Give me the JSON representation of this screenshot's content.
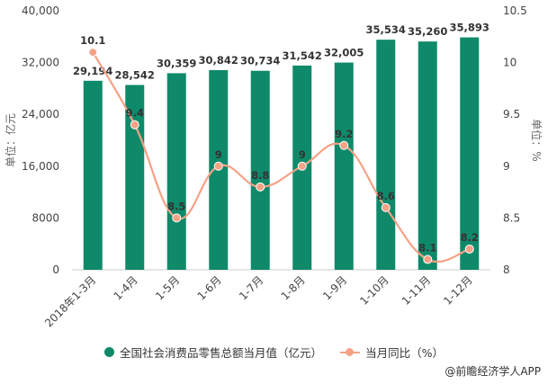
{
  "chart_data": {
    "type": "bar",
    "categories": [
      "2018年1-3月",
      "1-4月",
      "1-5月",
      "1-6月",
      "1-7月",
      "1-8月",
      "1-9月",
      "1-10月",
      "1-11月",
      "1-12月"
    ],
    "series": [
      {
        "name": "全国社会消费品零售总额当月值（亿元）",
        "type": "bar",
        "axis": "left",
        "values": [
          29194,
          28542,
          30359,
          30842,
          30734,
          31542,
          32005,
          35534,
          35260,
          35893
        ],
        "labels": [
          "29,194",
          "28,542",
          "30,359",
          "30,842",
          "30,734",
          "31,542",
          "32,005",
          "35,534",
          "35,260",
          "35,893"
        ],
        "color": "#0e8a6a"
      },
      {
        "name": "当月同比（%）",
        "type": "line",
        "axis": "right",
        "values": [
          10.1,
          9.4,
          8.5,
          9,
          8.8,
          9,
          9.2,
          8.6,
          8.1,
          8.2
        ],
        "labels": [
          "10.1",
          "9.4",
          "8.5",
          "9",
          "8.8",
          "9",
          "9.2",
          "8.6",
          "8.1",
          "8.2"
        ],
        "color": "#f5a286"
      }
    ],
    "ylabel": "单位：亿元",
    "y2label": "单位：%",
    "ylim": [
      0,
      40000
    ],
    "y2lim": [
      8,
      10.5
    ],
    "yticks": [
      "0",
      "8000",
      "16,000",
      "24,000",
      "32,000",
      "40,000"
    ],
    "y2ticks": [
      "8",
      "8.5",
      "9",
      "9.5",
      "10",
      "10.5"
    ],
    "grid": false,
    "legend_position": "bottom"
  },
  "legend": {
    "bar_label": "全国社会消费品零售总额当月值（亿元）",
    "line_label": "当月同比（%）"
  },
  "credit": "@前瞻经济学人APP"
}
